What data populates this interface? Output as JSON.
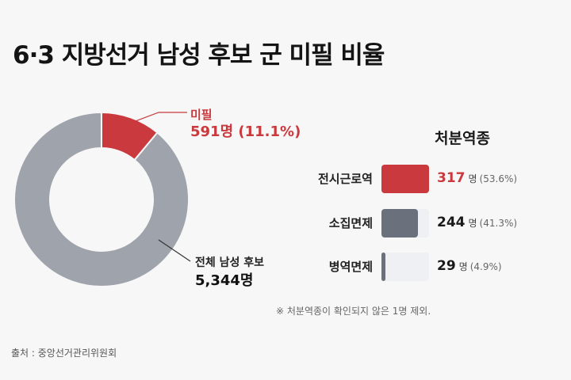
{
  "title": "6·3 지방선거 남성 후보 군 미필 비율",
  "chart_data": [
    {
      "type": "pie",
      "categories": [
        "미필",
        "전체 남성 후보"
      ],
      "values": [
        591,
        4753
      ],
      "callouts": [
        {
          "label": "미필",
          "value_text": "591명 (11.1%)"
        },
        {
          "label": "전체 남성 후보",
          "value_text": "5,344명"
        }
      ],
      "colors": [
        "#c9393d",
        "#9ea3ac"
      ]
    },
    {
      "type": "bar",
      "title": "처분역종",
      "categories": [
        "전시근로역",
        "소집면제",
        "병역면제"
      ],
      "values": [
        317,
        244,
        29
      ],
      "value_labels": [
        "317",
        "244",
        "29"
      ],
      "unit": "명",
      "percent_labels": [
        "(53.6%)",
        "(41.3%)",
        "(4.9%)"
      ],
      "xlim": [
        0,
        317
      ],
      "colors": [
        "#c9393d",
        "#6b707d",
        "#6b707d"
      ],
      "value_colors": [
        "#c9393d",
        "#1a1a1a",
        "#1a1a1a"
      ]
    }
  ],
  "note": "※ 처분역종이 확인되지 않은 1명 제외.",
  "source": "출처 : 중앙선거관리위원회"
}
